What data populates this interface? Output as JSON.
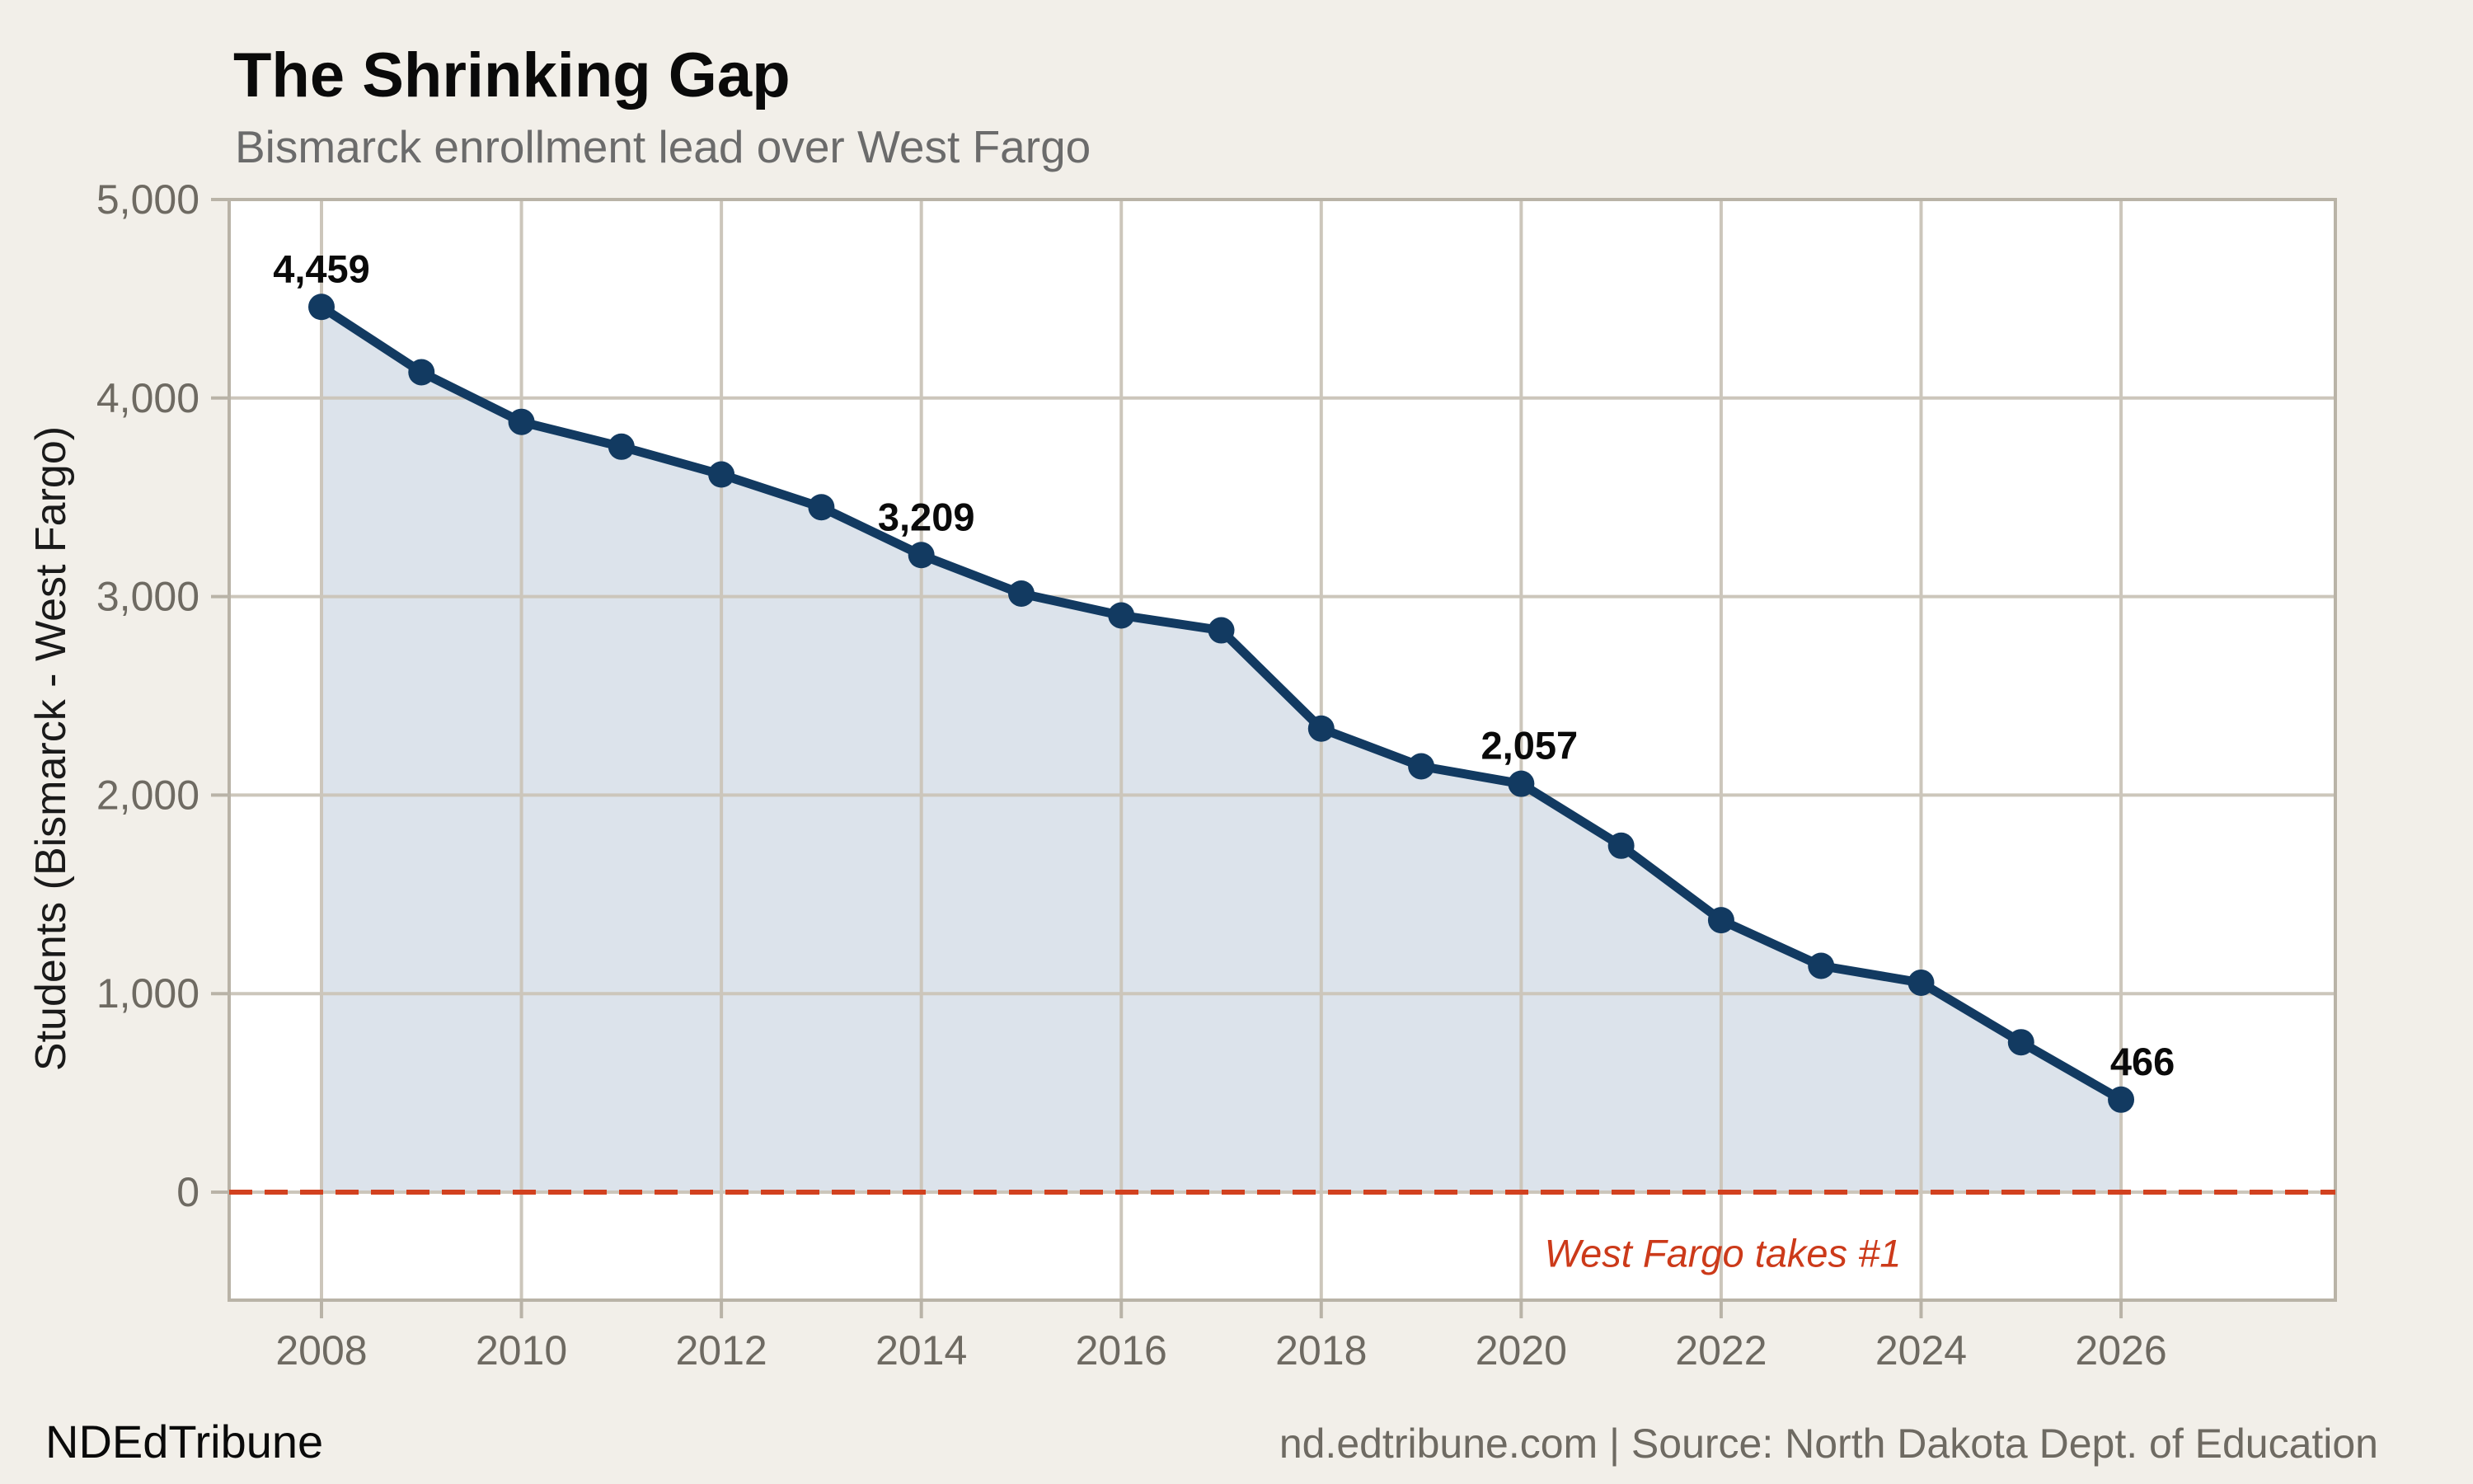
{
  "header": {
    "title": "The Shrinking Gap",
    "subtitle": "Bismarck enrollment lead over West Fargo"
  },
  "footer": {
    "left": "NDEdTribune",
    "right": "nd.edtribune.com | Source: North Dakota Dept. of Education"
  },
  "colors": {
    "background": "#f2efe9",
    "panel": "#ffffff",
    "line": "#123a61",
    "fill": "#dce3eb",
    "grid": "#ccc6bb",
    "border": "#b9b3a7",
    "zero_line": "#d2411f",
    "annotation": "#cc3a1a",
    "tick_label": "#6e6a62",
    "data_label": "#0a0a0a"
  },
  "chart_data": {
    "type": "area",
    "title": "The Shrinking Gap",
    "subtitle": "Bismarck enrollment lead over West Fargo",
    "xlabel": "",
    "ylabel": "Students (Bismarck - West Fargo)",
    "x": [
      2008,
      2009,
      2010,
      2011,
      2012,
      2013,
      2014,
      2015,
      2016,
      2017,
      2018,
      2019,
      2020,
      2021,
      2022,
      2023,
      2024,
      2025,
      2026
    ],
    "values": [
      4459,
      4130,
      3880,
      3755,
      3615,
      3450,
      3209,
      3015,
      2905,
      2830,
      2335,
      2145,
      2057,
      1745,
      1370,
      1140,
      1055,
      755,
      466
    ],
    "point_labels": [
      {
        "x": 2008,
        "value": 4459,
        "text": "4,459"
      },
      {
        "x": 2014,
        "value": 3209,
        "text": "3,209"
      },
      {
        "x": 2020,
        "value": 2057,
        "text": "2,057"
      },
      {
        "x": 2026,
        "value": 466,
        "text": "466"
      }
    ],
    "yticks": [
      {
        "value": 0,
        "label": "0"
      },
      {
        "value": 1000,
        "label": "1,000"
      },
      {
        "value": 2000,
        "label": "2,000"
      },
      {
        "value": 3000,
        "label": "3,000"
      },
      {
        "value": 4000,
        "label": "4,000"
      },
      {
        "value": 5000,
        "label": "5,000"
      }
    ],
    "xticks": [
      {
        "value": 2008,
        "label": "2008"
      },
      {
        "value": 2010,
        "label": "2010"
      },
      {
        "value": 2012,
        "label": "2012"
      },
      {
        "value": 2014,
        "label": "2014"
      },
      {
        "value": 2016,
        "label": "2016"
      },
      {
        "value": 2018,
        "label": "2018"
      },
      {
        "value": 2020,
        "label": "2020"
      },
      {
        "value": 2022,
        "label": "2022"
      },
      {
        "value": 2024,
        "label": "2024"
      },
      {
        "value": 2026,
        "label": "2026"
      }
    ],
    "ylim": [
      -545,
      5000
    ],
    "xlim": [
      2007.1,
      2028.1
    ],
    "grid": true,
    "legend": "none",
    "zero_line": {
      "value": 0,
      "style": "dashed",
      "annotation": "West Fargo takes #1"
    }
  }
}
